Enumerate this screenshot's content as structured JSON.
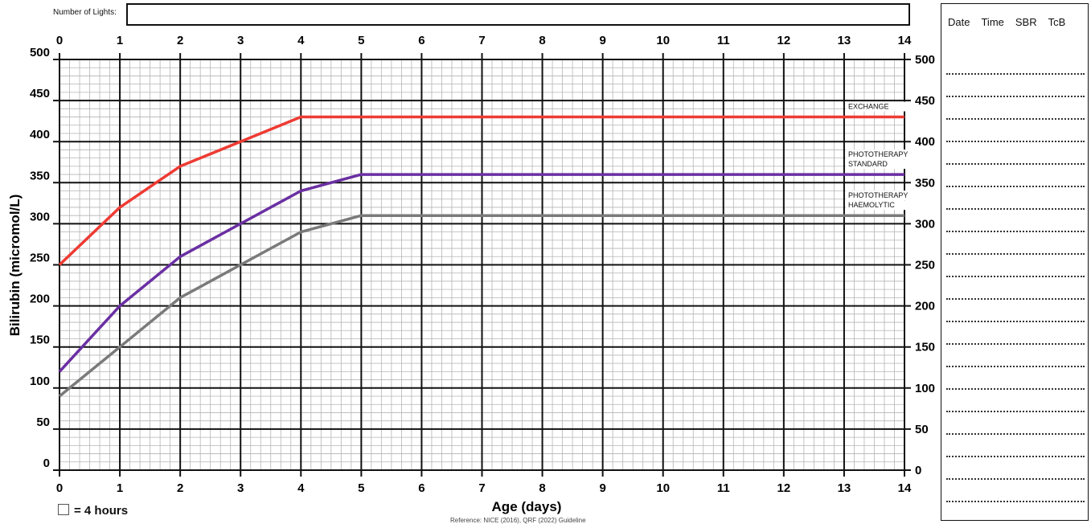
{
  "header": {
    "lights_label": "Number of Lights:",
    "lights_value": ""
  },
  "legend": {
    "grid_square_label": "= 4 hours"
  },
  "footer": {
    "reference": "Reference: NICE (2016), QRF (2022) Guideline"
  },
  "log_table": {
    "columns": [
      "Date",
      "Time",
      "SBR",
      "TcB"
    ],
    "row_count": 20
  },
  "colors": {
    "exchange": "#ee3b33",
    "phototherapy_standard": "#6a2fa3",
    "phototherapy_haemolytic": "#7a7a7a",
    "major_grid": "#111111",
    "minor_grid": "#b5b5b5"
  },
  "chart_data": {
    "type": "line",
    "xlabel": "Age (days)",
    "ylabel": "Bilirubin (micromol/L)",
    "xlim": [
      0,
      14
    ],
    "ylim": [
      0,
      500
    ],
    "x_ticks": [
      0,
      1,
      2,
      3,
      4,
      5,
      6,
      7,
      8,
      9,
      10,
      11,
      12,
      13,
      14
    ],
    "y_ticks": [
      0,
      50,
      100,
      150,
      200,
      250,
      300,
      350,
      400,
      450,
      500
    ],
    "x_axis_top": true,
    "y_axis_right": true,
    "grid": true,
    "minor_grid_x_per_day": 6,
    "minor_grid_y_step": 10,
    "series": [
      {
        "name": "EXCHANGE",
        "color_key": "exchange",
        "x": [
          0,
          1,
          2,
          3,
          4,
          14
        ],
        "y": [
          250,
          320,
          370,
          400,
          430,
          430
        ]
      },
      {
        "name": "PHOTOTHERAPY STANDARD",
        "color_key": "phototherapy_standard",
        "x": [
          0,
          1,
          2,
          3,
          4,
          5,
          14
        ],
        "y": [
          120,
          200,
          260,
          300,
          340,
          360,
          360
        ]
      },
      {
        "name": "PHOTOTHERAPY HAEMOLYTIC",
        "color_key": "phototherapy_haemolytic",
        "x": [
          0,
          1,
          2,
          3,
          4,
          5,
          14
        ],
        "y": [
          90,
          150,
          210,
          250,
          290,
          310,
          310
        ]
      }
    ],
    "annotations": [
      {
        "series": "EXCHANGE",
        "lines": [
          "EXCHANGE"
        ]
      },
      {
        "series": "PHOTOTHERAPY STANDARD",
        "lines": [
          "PHOTOTHERAPY",
          "STANDARD"
        ]
      },
      {
        "series": "PHOTOTHERAPY HAEMOLYTIC",
        "lines": [
          "PHOTOTHERAPY",
          "HAEMOLYTIC"
        ]
      }
    ]
  }
}
